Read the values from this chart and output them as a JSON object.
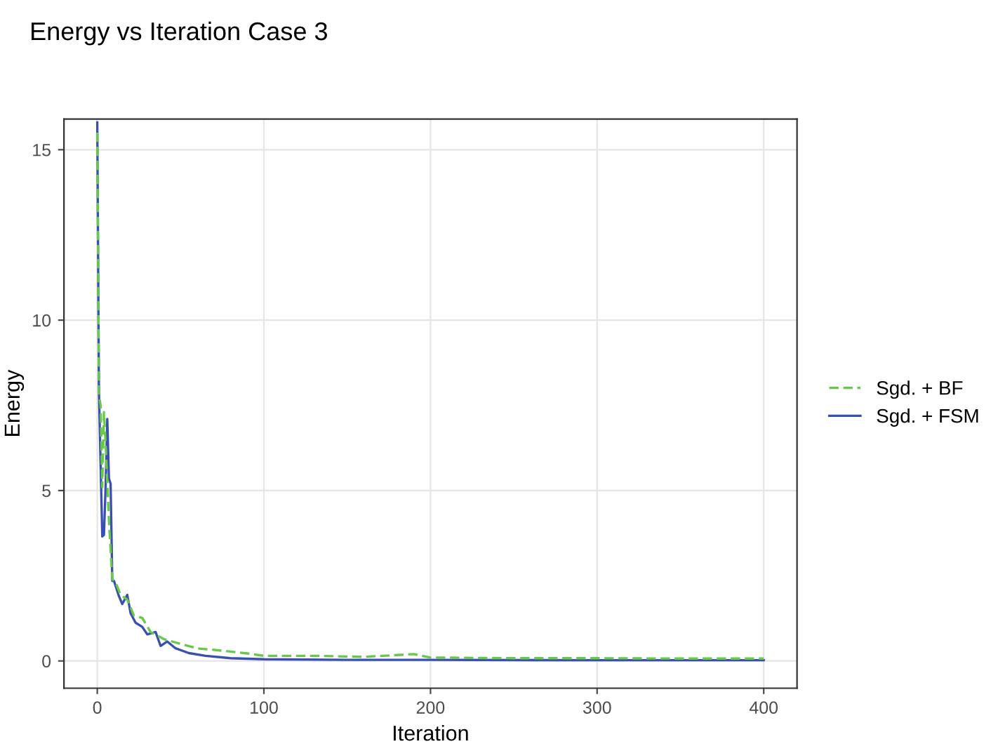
{
  "chart_data": {
    "type": "line",
    "title": "Energy vs Iteration Case 3",
    "xlabel": "Iteration",
    "ylabel": "Energy",
    "xlim": [
      -20,
      420
    ],
    "ylim": [
      -0.8,
      15.9
    ],
    "xticks": [
      0,
      100,
      200,
      300,
      400
    ],
    "yticks": [
      0,
      5,
      10,
      15
    ],
    "grid": true,
    "legend": "right",
    "series": [
      {
        "name": "Sgd. + BF",
        "color": "#66c94a",
        "line_style": "dashed",
        "x": [
          0,
          1,
          2,
          3,
          4,
          5,
          7,
          9,
          11,
          14,
          18,
          22,
          27,
          32,
          40,
          50,
          60,
          75,
          90,
          100,
          130,
          160,
          190,
          200,
          250,
          300,
          350,
          400
        ],
        "values": [
          15.5,
          7.8,
          7.5,
          5.1,
          7.3,
          6.4,
          4.1,
          2.4,
          2.3,
          1.94,
          1.8,
          1.33,
          1.26,
          0.85,
          0.64,
          0.5,
          0.37,
          0.3,
          0.22,
          0.15,
          0.15,
          0.12,
          0.2,
          0.1,
          0.08,
          0.08,
          0.07,
          0.07
        ]
      },
      {
        "name": "Sgd. + FSM",
        "color": "#3a4fb0",
        "line_style": "solid",
        "x": [
          0,
          1,
          3,
          4,
          5,
          6,
          7,
          8,
          9,
          10,
          11,
          13,
          15,
          18,
          20,
          23,
          27,
          30,
          35,
          38,
          42,
          47,
          55,
          65,
          80,
          100,
          150,
          200,
          300,
          400
        ],
        "values": [
          15.8,
          7.9,
          3.65,
          3.7,
          5.1,
          7.1,
          5.35,
          5.2,
          2.35,
          2.35,
          2.2,
          1.9,
          1.67,
          1.94,
          1.4,
          1.12,
          1.0,
          0.78,
          0.85,
          0.44,
          0.57,
          0.37,
          0.23,
          0.15,
          0.08,
          0.05,
          0.03,
          0.03,
          0.02,
          0.02
        ]
      }
    ]
  }
}
